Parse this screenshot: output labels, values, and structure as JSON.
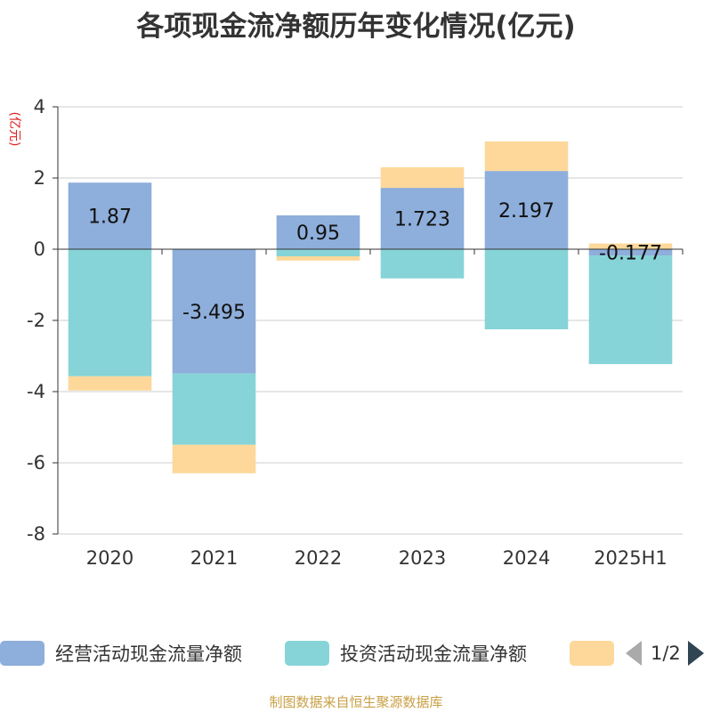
{
  "title": "各项现金流净额历年变化情况(亿元)",
  "y_unit": "(亿元)",
  "source_note": "制图数据来自恒生聚源数据库",
  "colors": {
    "operating": "#8eaedb",
    "investing": "#86d4d7",
    "financing": "#fdd89a"
  },
  "legend": {
    "items": [
      {
        "label": "经营活动现金流量净额",
        "color": "#8eaedb"
      },
      {
        "label": "投资活动现金流量净额",
        "color": "#86d4d7"
      },
      {
        "label": "",
        "color": "#fdd89a"
      }
    ],
    "page": "1/2",
    "prev_icon": "triangle-left-icon",
    "next_icon": "triangle-right-icon"
  },
  "chart_data": {
    "type": "bar",
    "stacked": true,
    "categories": [
      "2020",
      "2021",
      "2022",
      "2023",
      "2024",
      "2025H1"
    ],
    "ylim": [
      -8,
      4
    ],
    "yticks": [
      4,
      2,
      0,
      -2,
      -4,
      -6,
      -8
    ],
    "grid": true,
    "legend_position": "bottom",
    "series": [
      {
        "name": "经营活动现金流量净额",
        "values": [
          1.87,
          -3.495,
          0.95,
          1.723,
          2.197,
          -0.177
        ],
        "labels": [
          "1.87",
          "-3.495",
          "0.95",
          "1.723",
          "2.197",
          "-0.177"
        ]
      },
      {
        "name": "投资活动现金流量净额",
        "values": [
          -3.57,
          -2.0,
          -0.2,
          -0.82,
          -2.25,
          -3.05
        ]
      },
      {
        "values": [
          -0.4,
          -0.8,
          -0.12,
          0.58,
          0.83,
          0.16
        ]
      }
    ]
  }
}
